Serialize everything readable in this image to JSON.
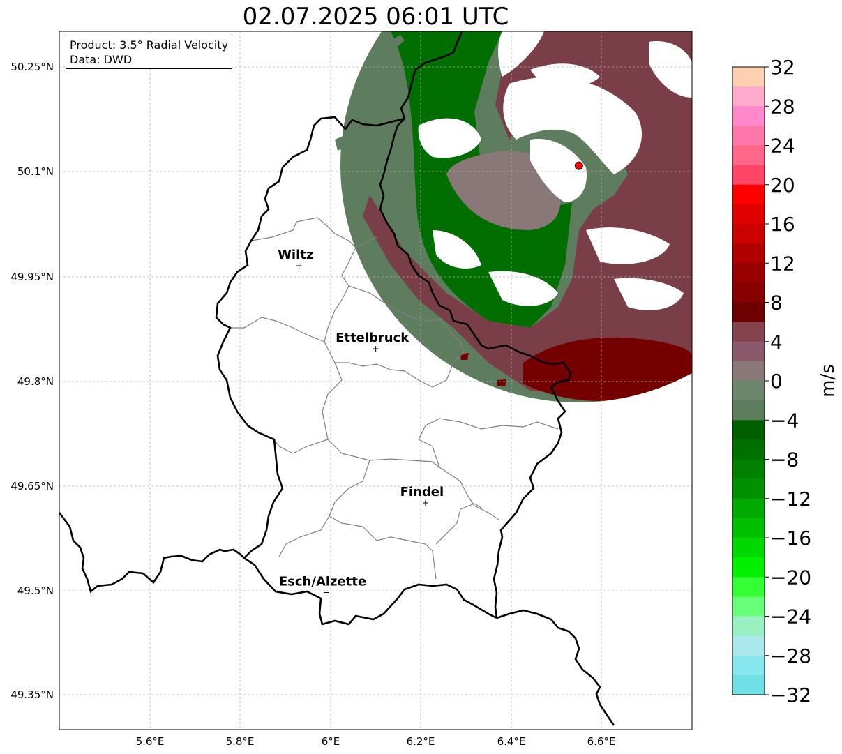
{
  "title": "02.07.2025 06:01 UTC",
  "info_box": {
    "product": "Product: 3.5° Radial Velocity",
    "source": "Data: DWD"
  },
  "map": {
    "lon_ticks": [
      "5.6°E",
      "5.8°E",
      "6°E",
      "6.2°E",
      "6.4°E",
      "6.6°E"
    ],
    "lat_ticks": [
      "50.25°N",
      "50.1°N",
      "49.95°N",
      "49.8°N",
      "49.65°N",
      "49.5°N",
      "49.35°N"
    ],
    "cities": [
      {
        "name": "Wiltz",
        "lon": 5.93,
        "lat": 49.966
      },
      {
        "name": "Ettelbruck",
        "lon": 6.1,
        "lat": 49.847
      },
      {
        "name": "Findel",
        "lon": 6.21,
        "lat": 49.626
      },
      {
        "name": "Esch/Alzette",
        "lon": 5.99,
        "lat": 49.498
      }
    ],
    "radar_site": {
      "lon": 6.55,
      "lat": 50.109
    },
    "grid": true
  },
  "colorbar": {
    "label": "m/s",
    "ticks": [
      "32",
      "28",
      "24",
      "20",
      "16",
      "12",
      "8",
      "4",
      "0",
      "−4",
      "−8",
      "−12",
      "−16",
      "−20",
      "−24",
      "−28",
      "−32"
    ],
    "colors_top_to_bottom": [
      "#ffd0b0",
      "#ffaacc",
      "#ff88cc",
      "#ff77aa",
      "#ff6688",
      "#ff4466",
      "#ff0000",
      "#e00000",
      "#cc0000",
      "#b00000",
      "#990000",
      "#880000",
      "#6e0000",
      "#84434c",
      "#8a5a6c",
      "#8a7878",
      "#6c866c",
      "#5c7e5c",
      "#006000",
      "#007000",
      "#008000",
      "#009000",
      "#00aa00",
      "#00c000",
      "#00d800",
      "#00f000",
      "#33ff33",
      "#66ff77",
      "#99f0c0",
      "#aae8ee",
      "#88e6ee",
      "#6ee0e6"
    ],
    "min": -32,
    "max": 32
  },
  "colors": {
    "radar_green": "#006e00",
    "radar_gray_green": "#5e7d5e",
    "radar_maroon": "#7a3e48",
    "radar_dark_red": "#750000",
    "site_marker": "#ff0000"
  }
}
